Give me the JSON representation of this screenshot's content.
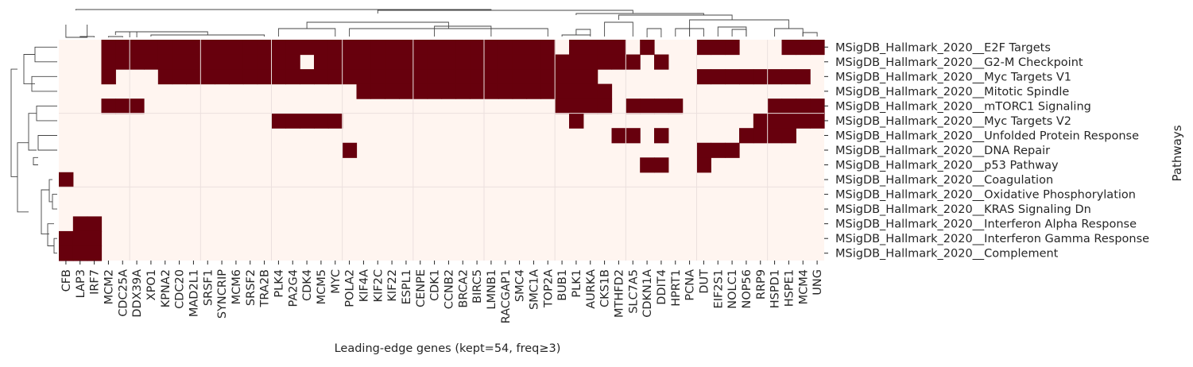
{
  "chart_data": {
    "type": "heatmap",
    "title": "",
    "xlabel": "Leading-edge genes (kept=54, freq≥3)",
    "ylabel": "Pathways",
    "x_categories": [
      "CFB",
      "LAP3",
      "IRF7",
      "MCM2",
      "CDC25A",
      "DDX39A",
      "XPO1",
      "KPNA2",
      "CDC20",
      "MAD2L1",
      "SRSF1",
      "SYNCRIP",
      "MCM6",
      "SRSF2",
      "TRA2B",
      "PLK4",
      "PA2G4",
      "CDK4",
      "MCM5",
      "MYC",
      "POLA2",
      "KIF4A",
      "KIF2C",
      "KIF22",
      "ESPL1",
      "CENPE",
      "CDK1",
      "CCNB2",
      "BRCA2",
      "BIRC5",
      "LMNB1",
      "RACGAP1",
      "SMC4",
      "SMC1A",
      "TOP2A",
      "BUB1",
      "PLK1",
      "AURKA",
      "CKS1B",
      "MTHFD2",
      "SLC7A5",
      "CDKN1A",
      "DDIT4",
      "HPRT1",
      "PCNA",
      "DUT",
      "EIF2S1",
      "NOLC1",
      "NOP56",
      "RRP9",
      "HSPD1",
      "HSPE1",
      "MCM4",
      "UNG"
    ],
    "y_categories": [
      "MSigDB_Hallmark_2020__E2F Targets",
      "MSigDB_Hallmark_2020__G2-M Checkpoint",
      "MSigDB_Hallmark_2020__Myc Targets V1",
      "MSigDB_Hallmark_2020__Mitotic Spindle",
      "MSigDB_Hallmark_2020__mTORC1 Signaling",
      "MSigDB_Hallmark_2020__Myc Targets V2",
      "MSigDB_Hallmark_2020__Unfolded Protein Response",
      "MSigDB_Hallmark_2020__DNA Repair",
      "MSigDB_Hallmark_2020__p53 Pathway",
      "MSigDB_Hallmark_2020__Coagulation",
      "MSigDB_Hallmark_2020__Oxidative Phosphorylation",
      "MSigDB_Hallmark_2020__KRAS Signaling Dn",
      "MSigDB_Hallmark_2020__Interferon Alpha Response",
      "MSigDB_Hallmark_2020__Interferon Gamma Response",
      "MSigDB_Hallmark_2020__Complement"
    ],
    "values": [
      "000111111111111111111111111111111110111101000111000111",
      "000111111111111110111111111111111111111110100000000000",
      "000100011111111111111111111111111111110000000111111110",
      "000000000000000000000111111111111111111000000000000000",
      "000111000000000000000000000000000001111011110000001111",
      "000000000000000111110000000000000000100000000000011111",
      "000000000000000000000000000000000000000110100000111100",
      "000000000000000000001000000000000000000000000111000000",
      "000000000000000000000000000000000000000001100100000000",
      "100000000000000000000000000000000000000000000000000000",
      "000000000000000000000000000000000000000000000000000000",
      "000000000000000000000000000000000000000000000000000000",
      "011000000000000000000000000000000000000000000000000000",
      "111000000000000000000000000000000000000000000000000000",
      "111000000000000000000000000000000000000000000000000000"
    ],
    "value_range": [
      0,
      1
    ],
    "colors": {
      "present": "#67000d",
      "absent": "#fff5f0",
      "grid": "#ebe0de",
      "dendrogram": "#444444"
    },
    "row_dendrogram": true,
    "col_dendrogram": true,
    "grid": true
  }
}
